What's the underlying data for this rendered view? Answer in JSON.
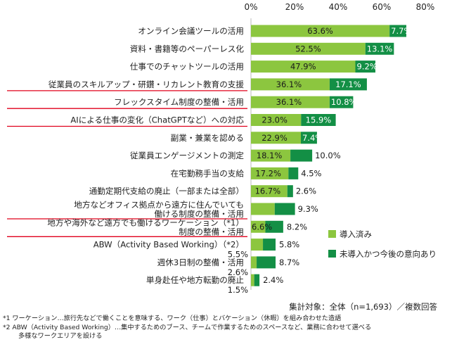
{
  "chart_data": {
    "type": "bar",
    "stacked": true,
    "orientation": "horizontal",
    "xlim": [
      0,
      80
    ],
    "x_ticks": [
      "0%",
      "20%",
      "40%",
      "60%",
      "80%"
    ],
    "categories": [
      [
        "オンライン会議ツールの活用"
      ],
      [
        "資料・書籍等のペーパーレス化"
      ],
      [
        "仕事でのチャットツールの活用"
      ],
      [
        "従業員のスキルアップ・研鑽・リカレント教育の支援"
      ],
      [
        "フレックスタイム制度の整備・活用"
      ],
      [
        "AIによる仕事の変化（ChatGPTなど）への対応"
      ],
      [
        "副業・兼業を認める"
      ],
      [
        "従業員エンゲージメントの測定"
      ],
      [
        "在宅勤務手当の支給"
      ],
      [
        "通勤定期代支給の廃止（一部または全部）"
      ],
      [
        "地方などオフィス拠点から遠方に住んでいても",
        "働ける制度の整備・活用"
      ],
      [
        "地方や海外など遠方でも働けるワーケーション（*1）",
        "制度の整備・活用"
      ],
      [
        "ABW（Activity Based Working）（*2）"
      ],
      [
        "週休3日制の整備・活用"
      ],
      [
        "単身赴任や地方転勤の廃止"
      ]
    ],
    "underlined_categories": [
      3,
      4,
      5,
      10,
      11
    ],
    "series": [
      {
        "name": "導入済み",
        "values": [
          63.6,
          52.5,
          47.9,
          36.1,
          36.1,
          23.0,
          22.9,
          18.1,
          17.2,
          16.7,
          10.9,
          6.6,
          5.5,
          2.6,
          1.5
        ]
      },
      {
        "name": "未導入かつ今後の意向あり",
        "values": [
          7.7,
          13.1,
          9.2,
          17.1,
          10.8,
          15.9,
          7.4,
          10.0,
          4.5,
          2.6,
          9.3,
          8.2,
          5.8,
          8.7,
          2.4
        ]
      }
    ],
    "labels_1": [
      "63.6%",
      "52.5%",
      "47.9%",
      "36.1%",
      "36.1%",
      "23.0%",
      "22.9%",
      "18.1%",
      "17.2%",
      "16.7%",
      "10.9%",
      "6.6%",
      "5.5%",
      "2.6%",
      "1.5%"
    ],
    "labels_2": [
      "7.7%",
      "13.1%",
      "9.2%",
      "17.1%",
      "10.8%",
      "15.9%",
      "7.4%",
      "10.0%",
      "4.5%",
      "2.6%",
      "9.3%",
      "8.2%",
      "5.8%",
      "8.7%",
      "2.4%"
    ],
    "annotation": "集計対象：全体（n=1,693）／複数回答",
    "colors": {
      "implemented": "#8cc63f",
      "intended": "#138f45",
      "underline": "#e0001b"
    }
  },
  "notes": [
    "*1 ワーケーション…旅行先などで働くことを意味する、ワーク（仕事）とバケーション（休暇）を組み合わせた造語",
    "*2 ABW（Activity Based Working）…集中するためのブース、チームで作業するためのスペースなど、業務に合わせて選べる",
    "多様なワークエリアを設ける"
  ]
}
